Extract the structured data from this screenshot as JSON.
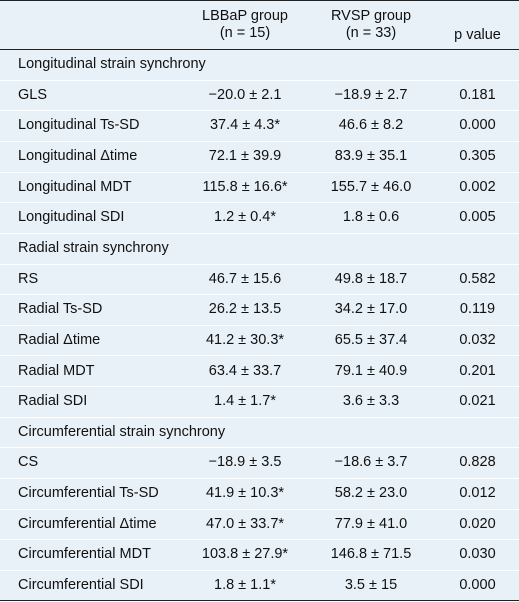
{
  "header": {
    "col1": [
      "LBBaP group",
      "(n = 15)"
    ],
    "col2": [
      "RVSP group",
      "(n = 33)"
    ],
    "col3": "p value"
  },
  "rows": [
    {
      "type": "section",
      "label": "Longitudinal strain synchrony"
    },
    {
      "type": "data",
      "label": "GLS",
      "lbbap": "−20.0 ± 2.1",
      "rvsp": "−18.9 ± 2.7",
      "p": "0.181"
    },
    {
      "type": "data",
      "label": "Longitudinal Ts-SD",
      "lbbap": "37.4 ± 4.3*",
      "rvsp": "46.6 ± 8.2",
      "p": "0.000"
    },
    {
      "type": "data",
      "label": "Longitudinal Δtime",
      "lbbap": "72.1 ± 39.9",
      "rvsp": "83.9 ± 35.1",
      "p": "0.305"
    },
    {
      "type": "data",
      "label": "Longitudinal MDT",
      "lbbap": "115.8 ± 16.6*",
      "rvsp": "155.7 ± 46.0",
      "p": "0.002"
    },
    {
      "type": "data",
      "label": "Longitudinal SDI",
      "lbbap": "1.2 ± 0.4*",
      "rvsp": "1.8 ± 0.6",
      "p": "0.005"
    },
    {
      "type": "section",
      "label": "Radial strain synchrony"
    },
    {
      "type": "data",
      "label": "RS",
      "lbbap": "46.7 ± 15.6",
      "rvsp": "49.8 ± 18.7",
      "p": "0.582"
    },
    {
      "type": "data",
      "label": "Radial Ts-SD",
      "lbbap": "26.2 ± 13.5",
      "rvsp": "34.2 ± 17.0",
      "p": "0.119"
    },
    {
      "type": "data",
      "label": "Radial Δtime",
      "lbbap": "41.2 ± 30.3*",
      "rvsp": "65.5 ± 37.4",
      "p": "0.032"
    },
    {
      "type": "data",
      "label": "Radial MDT",
      "lbbap": "63.4 ± 33.7",
      "rvsp": "79.1 ± 40.9",
      "p": "0.201"
    },
    {
      "type": "data",
      "label": "Radial SDI",
      "lbbap": "1.4 ± 1.7*",
      "rvsp": "3.6 ± 3.3",
      "p": "0.021"
    },
    {
      "type": "section",
      "label": "Circumferential strain synchrony"
    },
    {
      "type": "data",
      "label": "CS",
      "lbbap": "−18.9 ± 3.5",
      "rvsp": "−18.6 ± 3.7",
      "p": "0.828"
    },
    {
      "type": "data",
      "label": "Circumferential Ts-SD",
      "lbbap": "41.9 ± 10.3*",
      "rvsp": "58.2 ± 23.0",
      "p": "0.012"
    },
    {
      "type": "data",
      "label": "Circumferential Δtime",
      "lbbap": "47.0 ± 33.7*",
      "rvsp": "77.9 ± 41.0",
      "p": "0.020"
    },
    {
      "type": "data",
      "label": "Circumferential MDT",
      "lbbap": "103.8 ± 27.9*",
      "rvsp": "146.8 ± 71.5",
      "p": "0.030"
    },
    {
      "type": "data",
      "label": "Circumferential SDI",
      "lbbap": "1.8 ± 1.1*",
      "rvsp": "3.5 ± 15",
      "p": "0.000"
    }
  ]
}
